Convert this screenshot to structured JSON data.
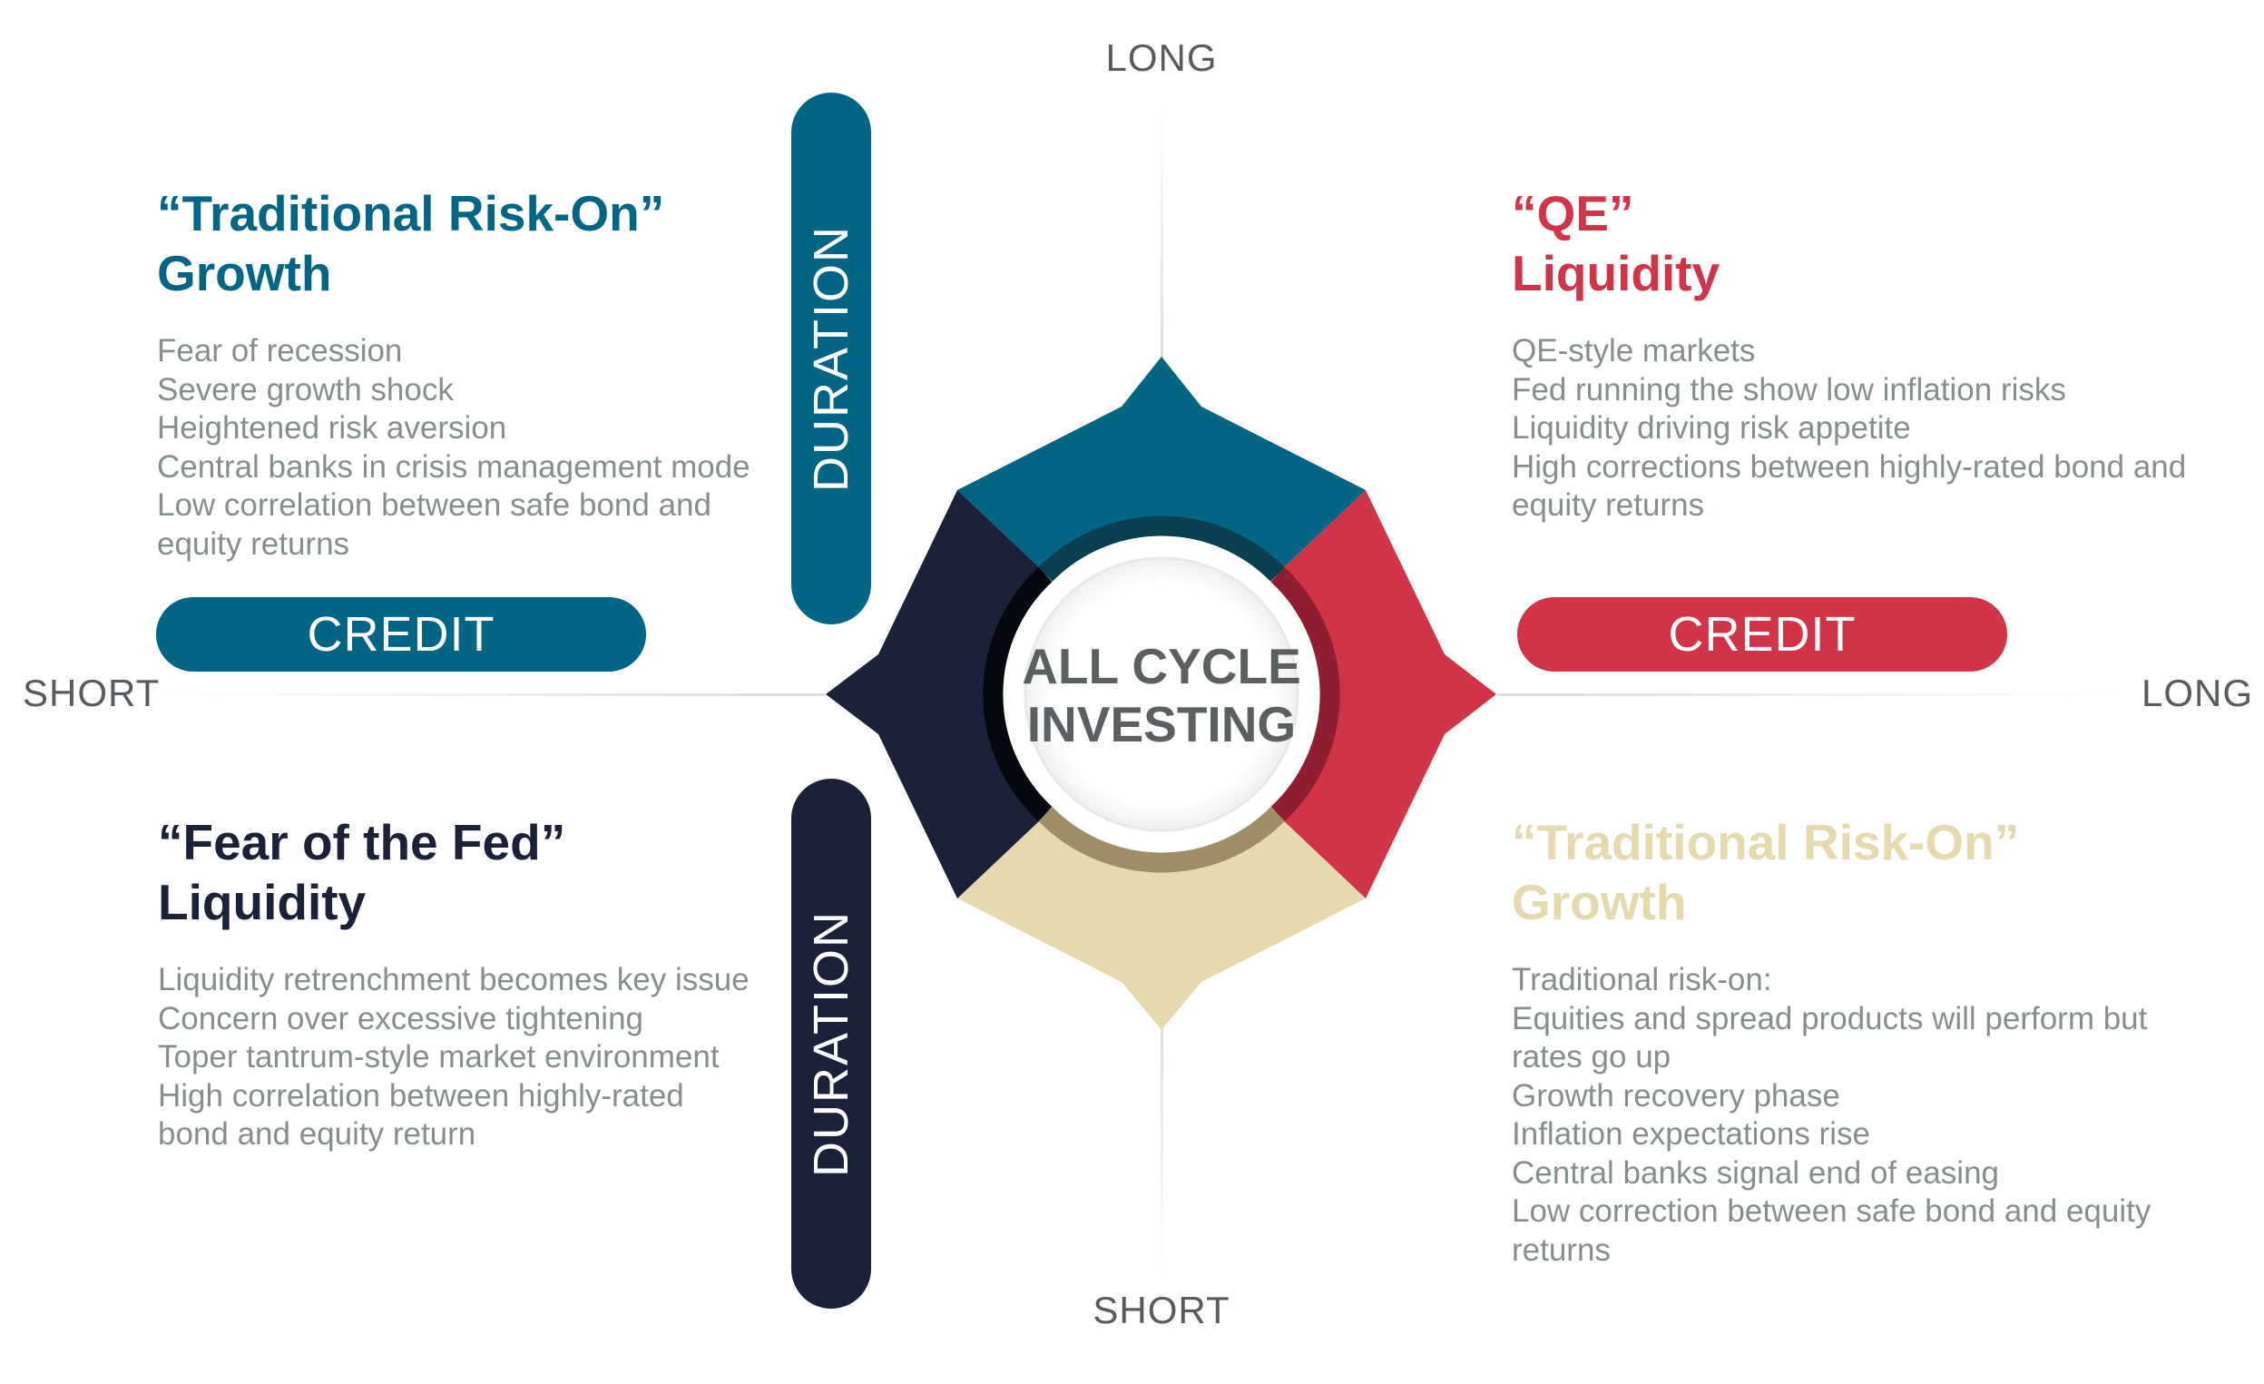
{
  "axes": {
    "top": "LONG",
    "bottom": "SHORT",
    "left": "SHORT",
    "right": "LONG"
  },
  "center": {
    "line1": "ALL CYCLE",
    "line2": "INVESTING"
  },
  "pills": {
    "credit_left": "CREDIT",
    "credit_right": "CREDIT",
    "duration_top": "DURATION",
    "duration_bottom": "DURATION"
  },
  "quadrants": {
    "top_left": {
      "title1": "“Traditional Risk-On”",
      "title2": "Growth",
      "lines": [
        "Fear of recession",
        "Severe growth shock",
        "Heightened risk aversion",
        "Central banks in crisis management mode",
        "Low correlation between safe bond and",
        "equity returns"
      ]
    },
    "top_right": {
      "title1": "“QE”",
      "title2": "Liquidity",
      "lines": [
        "QE-style markets",
        "Fed running the show low inflation risks",
        "Liquidity driving risk appetite",
        "High corrections between highly-rated bond and",
        "equity returns"
      ]
    },
    "bottom_left": {
      "title1": "“Fear of the Fed”",
      "title2": "Liquidity",
      "lines": [
        "Liquidity retrenchment becomes key issue",
        "Concern over excessive tightening",
        "Toper tantrum-style market environment",
        "High correlation between highly-rated",
        "bond and equity return"
      ]
    },
    "bottom_right": {
      "title1": "“Traditional Risk-On”",
      "title2": "Growth",
      "lines": [
        "Traditional risk-on:",
        "Equities and spread products will perform but",
        "rates go up",
        "Growth recovery phase",
        "Inflation expectations rise",
        "Central banks signal end of easing",
        "Low correction between safe bond and equity",
        "returns"
      ]
    }
  },
  "colors": {
    "teal": "#036584",
    "red": "#d13349",
    "navy": "#1a2139",
    "beige": "#e6d9b0",
    "text_gray": "#848f8a",
    "axis_gray": "#555b5e"
  }
}
